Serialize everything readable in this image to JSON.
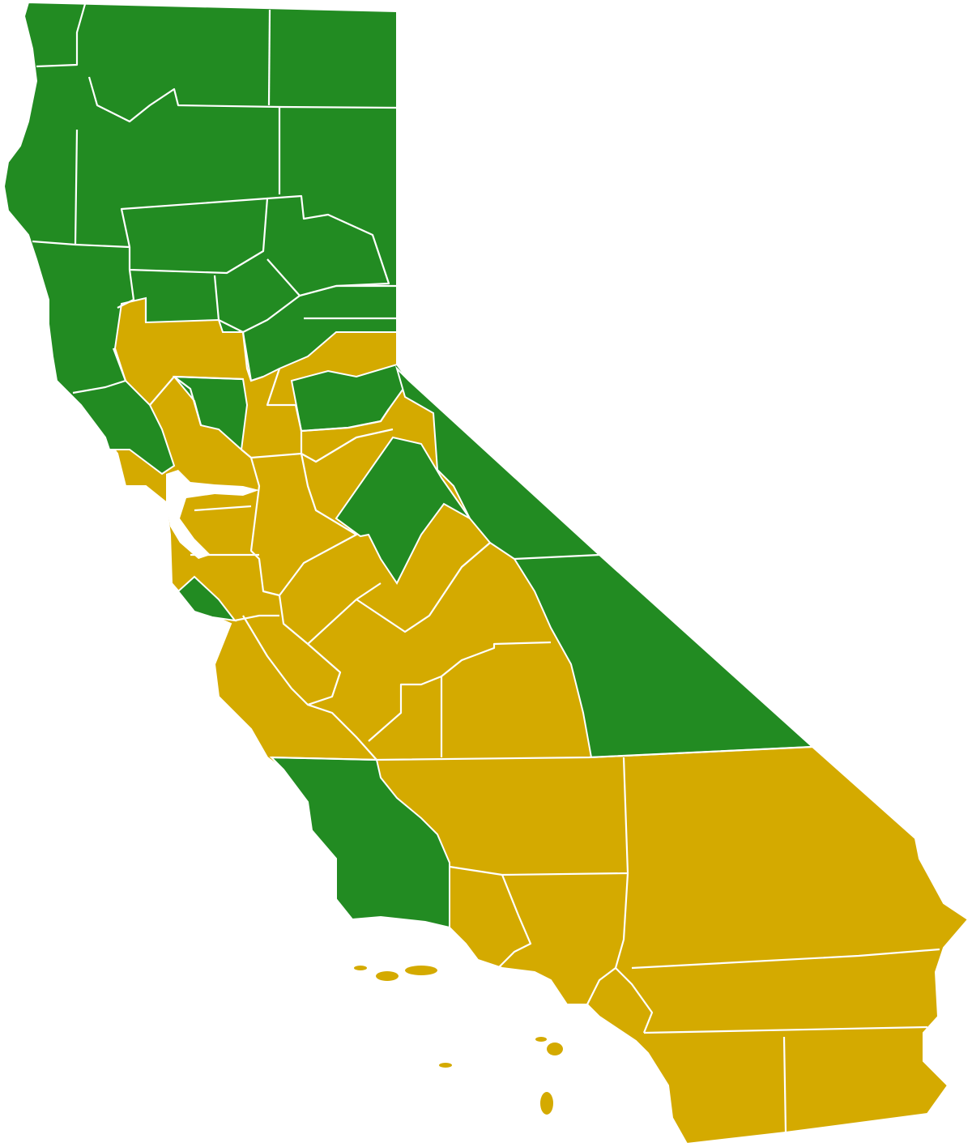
{
  "map": {
    "colors": {
      "green": "#228B22",
      "gold": "#D4AA00",
      "border": "#FFFFFF"
    }
  }
}
